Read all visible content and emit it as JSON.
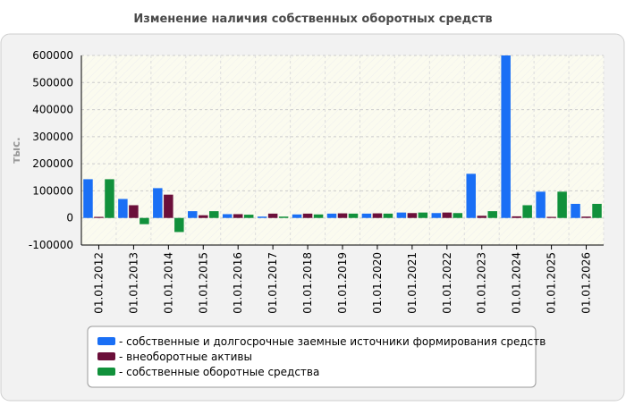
{
  "chart_data": {
    "type": "bar",
    "title": "Изменение наличия собственных оборотных средств",
    "ylabel": "тыс.",
    "ylim": [
      -100000,
      600000
    ],
    "yticks": [
      -100000,
      0,
      100000,
      200000,
      300000,
      400000,
      500000,
      600000
    ],
    "grid": true,
    "legend_position": "bottom",
    "categories": [
      "01.01.2012",
      "01.01.2013",
      "01.01.2014",
      "01.01.2015",
      "01.01.2016",
      "01.01.2017",
      "01.01.2018",
      "01.01.2019",
      "01.01.2020",
      "01.01.2021",
      "01.01.2022",
      "01.01.2023",
      "01.01.2024",
      "01.01.2025",
      "01.01.2026"
    ],
    "series": [
      {
        "name": "собственные и долгосрочные заемные источники формирования средств",
        "color": "#1a6ff5",
        "values": [
          143000,
          70000,
          110000,
          25000,
          14000,
          5000,
          13000,
          16000,
          16000,
          20000,
          18000,
          163000,
          600000,
          97000,
          52000
        ]
      },
      {
        "name": "внеоборотные активы",
        "color": "#6b0f3a",
        "values": [
          4000,
          47000,
          86000,
          10000,
          14000,
          16000,
          16000,
          17000,
          17000,
          18000,
          20000,
          8000,
          6000,
          4000,
          5000
        ]
      },
      {
        "name": "собственные оборотные средства",
        "color": "#11913b",
        "values": [
          143000,
          -23000,
          -52000,
          25000,
          12000,
          5000,
          13000,
          16000,
          16000,
          20000,
          18000,
          25000,
          47000,
          97000,
          52000
        ]
      }
    ]
  }
}
